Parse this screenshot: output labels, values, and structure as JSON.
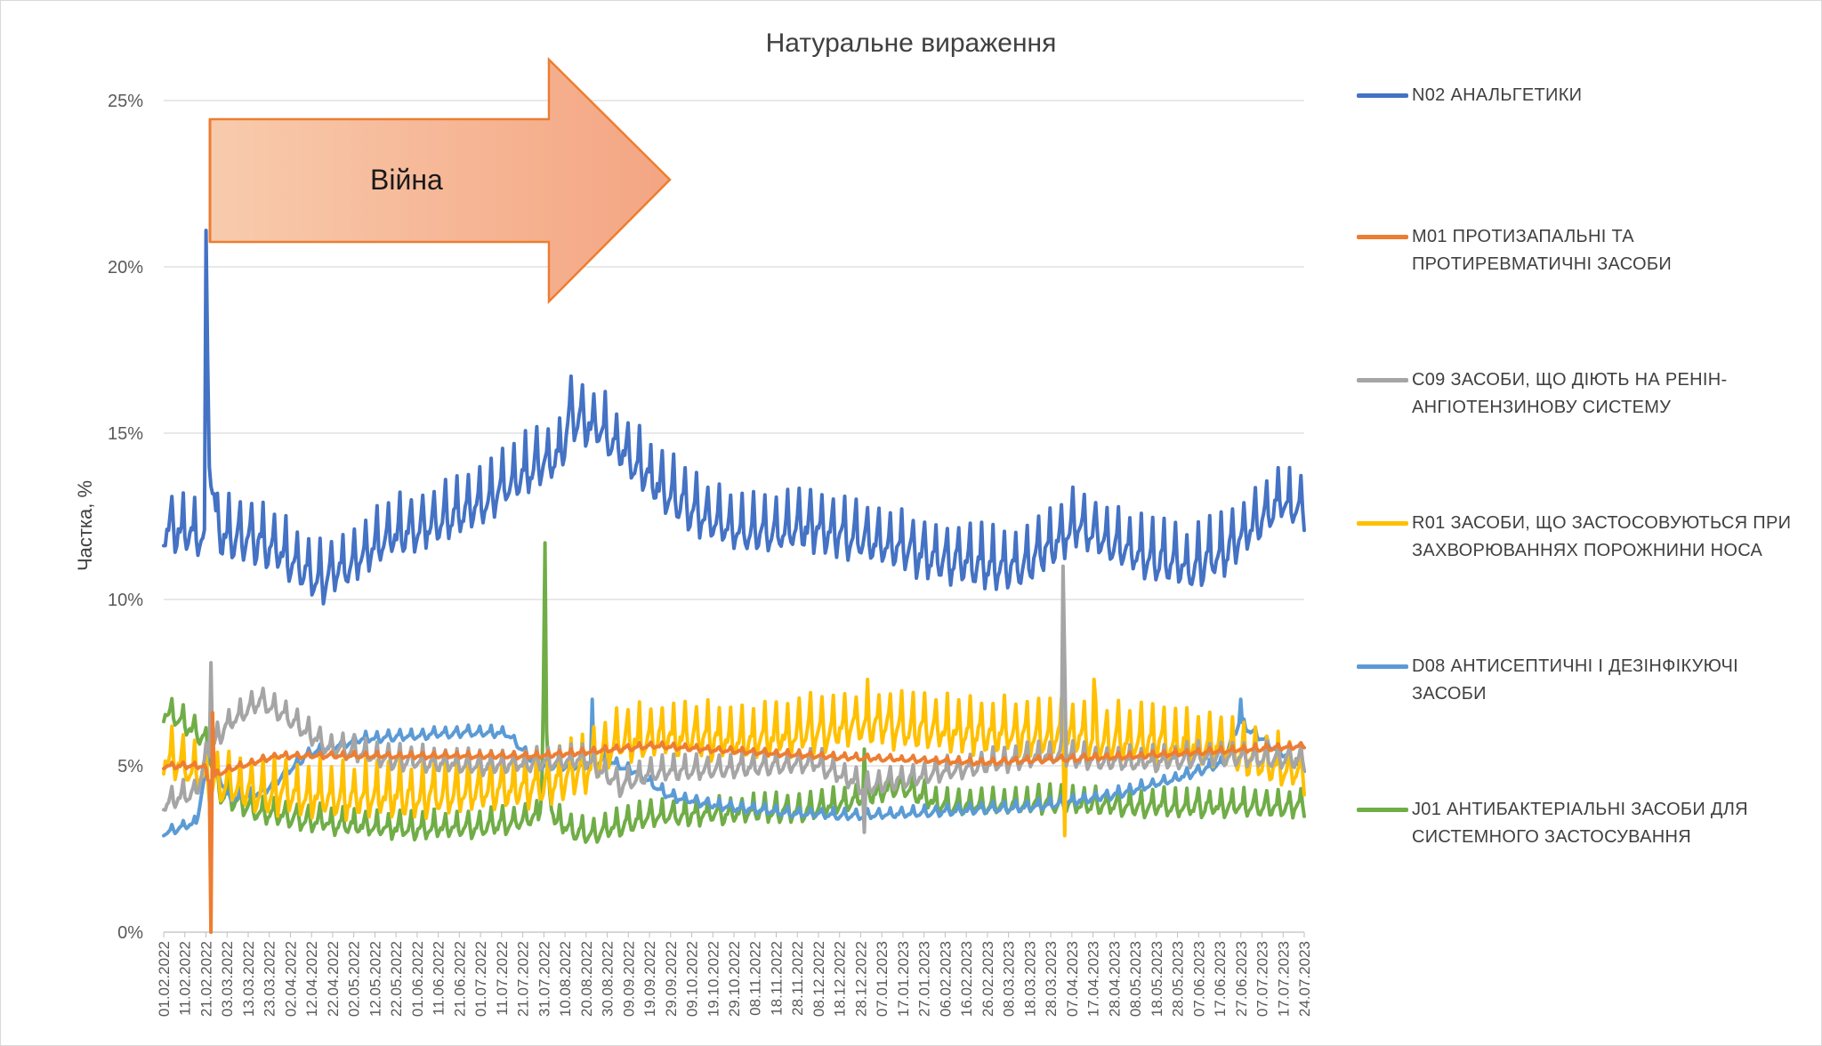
{
  "chart_data": {
    "type": "line",
    "title": "Натуральне вираження",
    "xlabel": "",
    "ylabel": "Частка, %",
    "ylim": [
      0,
      25
    ],
    "yticks": [
      "0%",
      "5%",
      "10%",
      "15%",
      "20%",
      "25%"
    ],
    "xticks": [
      "01.02.2022",
      "11.02.2022",
      "21.02.2022",
      "03.03.2022",
      "13.03.2022",
      "23.03.2022",
      "02.04.2022",
      "12.04.2022",
      "22.04.2022",
      "02.05.2022",
      "12.05.2022",
      "22.05.2022",
      "01.06.2022",
      "11.06.2022",
      "21.06.2022",
      "01.07.2022",
      "11.07.2022",
      "21.07.2022",
      "31.07.2022",
      "10.08.2022",
      "20.08.2022",
      "30.08.2022",
      "09.09.2022",
      "19.09.2022",
      "29.09.2022",
      "09.10.2022",
      "19.10.2022",
      "29.10.2022",
      "08.11.2022",
      "18.11.2022",
      "28.11.2022",
      "08.12.2022",
      "18.12.2022",
      "28.12.2022",
      "07.01.2023",
      "17.01.2023",
      "27.01.2023",
      "06.02.2023",
      "16.02.2023",
      "26.02.2023",
      "08.03.2023",
      "18.03.2023",
      "28.03.2023",
      "07.04.2023",
      "17.04.2023",
      "28.04.2023",
      "08.05.2023",
      "18.05.2023",
      "28.05.2023",
      "07.06.2023",
      "17.06.2023",
      "27.06.2023",
      "07.07.2023",
      "17.07.2023",
      "24.07.2023"
    ],
    "grid": "horizontal",
    "legend_position": "right",
    "annotation": {
      "text": "Війна",
      "type": "arrow"
    },
    "series": [
      {
        "name": "N02 АНАЛЬГЕТИКИ",
        "color": "#4472C4",
        "weekly_amplitude": 1.1,
        "anchors": [
          [
            0,
            12.2
          ],
          [
            20,
            12.0
          ],
          [
            25,
            12.0
          ],
          [
            26,
            20.2
          ],
          [
            28,
            14.5
          ],
          [
            33,
            12.0
          ],
          [
            60,
            11.8
          ],
          [
            96,
            10.6
          ],
          [
            140,
            11.9
          ],
          [
            190,
            12.8
          ],
          [
            230,
            14.1
          ],
          [
            244,
            14.4
          ],
          [
            250,
            15.6
          ],
          [
            270,
            15.1
          ],
          [
            300,
            13.6
          ],
          [
            330,
            12.5
          ],
          [
            360,
            12.1
          ],
          [
            400,
            12.2
          ],
          [
            440,
            11.7
          ],
          [
            470,
            11.3
          ],
          [
            505,
            11.1
          ],
          [
            525,
            11.0
          ],
          [
            540,
            11.5
          ],
          [
            560,
            12.3
          ],
          [
            600,
            11.4
          ],
          [
            630,
            11.0
          ],
          [
            655,
            11.6
          ],
          [
            675,
            12.5
          ],
          [
            685,
            13.0
          ],
          [
            701,
            12.6
          ]
        ],
        "spikes": []
      },
      {
        "name": "M01 ПРОТИЗАПАЛЬНІ ТА ПРОТИРЕВМАТИЧНІ ЗАСОБИ",
        "color": "#ED7D31",
        "weekly_amplitude": 0.12,
        "anchors": [
          [
            0,
            5.0
          ],
          [
            25,
            5.0
          ],
          [
            27,
            4.6
          ],
          [
            40,
            4.9
          ],
          [
            70,
            5.3
          ],
          [
            140,
            5.3
          ],
          [
            230,
            5.3
          ],
          [
            300,
            5.6
          ],
          [
            400,
            5.3
          ],
          [
            500,
            5.1
          ],
          [
            600,
            5.3
          ],
          [
            701,
            5.6
          ]
        ],
        "spikes": [
          [
            29,
            0.0
          ],
          [
            30,
            6.6
          ]
        ]
      },
      {
        "name": "C09 ЗАСОБИ, ЩО ДІЮТЬ НА РЕНІН-АНГІОТЕНЗИНОВУ СИСТЕМУ",
        "color": "#A5A5A5",
        "weekly_amplitude": 0.45,
        "anchors": [
          [
            0,
            3.9
          ],
          [
            20,
            4.2
          ],
          [
            27,
            5.5
          ],
          [
            40,
            6.3
          ],
          [
            60,
            7.0
          ],
          [
            75,
            6.5
          ],
          [
            100,
            5.6
          ],
          [
            140,
            5.2
          ],
          [
            200,
            5.0
          ],
          [
            260,
            5.2
          ],
          [
            280,
            4.4
          ],
          [
            300,
            4.8
          ],
          [
            400,
            5.1
          ],
          [
            430,
            4.4
          ],
          [
            500,
            5.0
          ],
          [
            540,
            5.3
          ],
          [
            600,
            5.1
          ],
          [
            640,
            5.3
          ],
          [
            701,
            5.2
          ]
        ],
        "spikes": [
          [
            29,
            8.1
          ],
          [
            552,
            11.0
          ],
          [
            553,
            8.0
          ],
          [
            430,
            3.0
          ]
        ]
      },
      {
        "name": "R01 ЗАСОБИ, ЩО ЗАСТОСОВУЮТЬСЯ ПРИ ЗАХВОРЮВАННЯХ ПОРОЖНИНИ НОСА",
        "color": "#FFC000",
        "weekly_amplitude": 1.0,
        "anchors": [
          [
            0,
            5.4
          ],
          [
            30,
            4.6
          ],
          [
            60,
            4.2
          ],
          [
            100,
            4.1
          ],
          [
            150,
            4.1
          ],
          [
            200,
            4.3
          ],
          [
            230,
            4.4
          ],
          [
            260,
            4.9
          ],
          [
            280,
            5.8
          ],
          [
            320,
            5.9
          ],
          [
            360,
            5.8
          ],
          [
            400,
            6.1
          ],
          [
            430,
            6.3
          ],
          [
            470,
            6.1
          ],
          [
            520,
            6.0
          ],
          [
            560,
            5.9
          ],
          [
            600,
            5.8
          ],
          [
            650,
            5.6
          ],
          [
            680,
            5.0
          ],
          [
            701,
            4.8
          ]
        ],
        "spikes": [
          [
            553,
            2.9
          ],
          [
            571,
            7.6
          ],
          [
            432,
            7.6
          ]
        ]
      },
      {
        "name": "D08 АНТИСЕПТИЧНІ І ДЕЗІНФІКУЮЧІ ЗАСОБИ",
        "color": "#5B9BD5",
        "weekly_amplitude": 0.2,
        "anchors": [
          [
            0,
            3.0
          ],
          [
            20,
            3.3
          ],
          [
            28,
            5.4
          ],
          [
            40,
            4.0
          ],
          [
            60,
            4.2
          ],
          [
            90,
            5.4
          ],
          [
            120,
            5.8
          ],
          [
            180,
            6.0
          ],
          [
            210,
            6.0
          ],
          [
            230,
            5.0
          ],
          [
            260,
            5.0
          ],
          [
            270,
            5.2
          ],
          [
            290,
            4.8
          ],
          [
            310,
            4.1
          ],
          [
            340,
            3.8
          ],
          [
            380,
            3.6
          ],
          [
            420,
            3.5
          ],
          [
            470,
            3.6
          ],
          [
            540,
            3.8
          ],
          [
            580,
            4.1
          ],
          [
            620,
            4.6
          ],
          [
            650,
            5.1
          ],
          [
            660,
            6.3
          ],
          [
            680,
            5.6
          ],
          [
            701,
            4.9
          ]
        ],
        "spikes": [
          [
            263,
            7.0
          ],
          [
            661,
            7.0
          ]
        ]
      },
      {
        "name": "J01 АНТИБАКТЕРІАЛЬНІ ЗАСОБИ ДЛЯ СИСТЕМНОГО ЗАСТОСУВАННЯ",
        "color": "#70AD47",
        "weekly_amplitude": 0.5,
        "anchors": [
          [
            0,
            6.7
          ],
          [
            15,
            6.2
          ],
          [
            25,
            5.8
          ],
          [
            35,
            4.2
          ],
          [
            60,
            3.6
          ],
          [
            100,
            3.3
          ],
          [
            150,
            3.1
          ],
          [
            200,
            3.2
          ],
          [
            230,
            3.5
          ],
          [
            234,
            5.2
          ],
          [
            240,
            3.4
          ],
          [
            260,
            2.9
          ],
          [
            300,
            3.5
          ],
          [
            350,
            3.6
          ],
          [
            400,
            3.7
          ],
          [
            430,
            4.1
          ],
          [
            450,
            4.4
          ],
          [
            480,
            3.8
          ],
          [
            540,
            3.9
          ],
          [
            600,
            3.8
          ],
          [
            650,
            3.8
          ],
          [
            701,
            3.8
          ]
        ],
        "spikes": [
          [
            233,
            7.0
          ],
          [
            234,
            11.7
          ],
          [
            235,
            6.0
          ],
          [
            430,
            5.5
          ]
        ]
      }
    ]
  }
}
